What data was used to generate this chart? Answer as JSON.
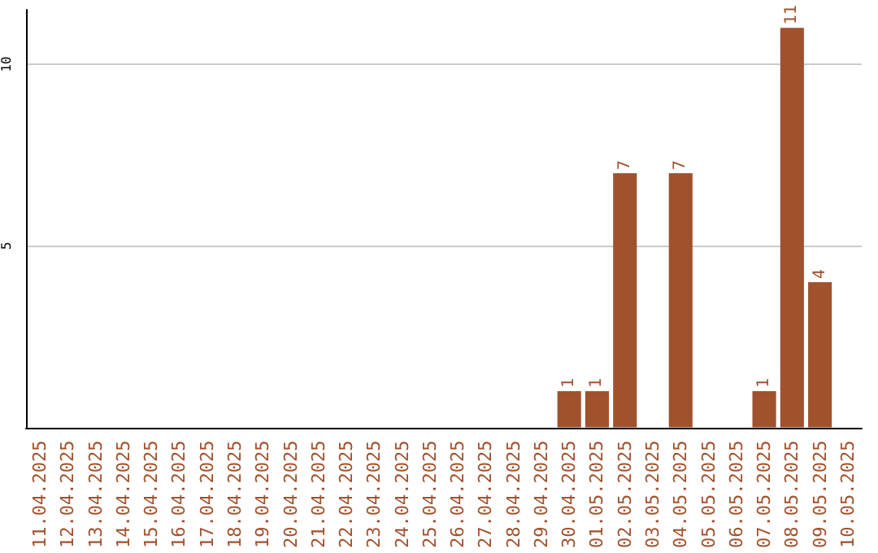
{
  "chart_data": {
    "type": "bar",
    "categories": [
      "11.04.2025",
      "12.04.2025",
      "13.04.2025",
      "14.04.2025",
      "15.04.2025",
      "16.04.2025",
      "17.04.2025",
      "18.04.2025",
      "19.04.2025",
      "20.04.2025",
      "21.04.2025",
      "22.04.2025",
      "23.04.2025",
      "24.04.2025",
      "25.04.2025",
      "26.04.2025",
      "27.04.2025",
      "28.04.2025",
      "29.04.2025",
      "30.04.2025",
      "01.05.2025",
      "02.05.2025",
      "03.05.2025",
      "04.05.2025",
      "05.05.2025",
      "06.05.2025",
      "07.05.2025",
      "08.05.2025",
      "09.05.2025",
      "10.05.2025"
    ],
    "values": [
      0,
      0,
      0,
      0,
      0,
      0,
      0,
      0,
      0,
      0,
      0,
      0,
      0,
      0,
      0,
      0,
      0,
      0,
      0,
      1,
      1,
      7,
      0,
      7,
      0,
      0,
      1,
      11,
      4,
      0
    ],
    "value_labels": [
      null,
      null,
      null,
      null,
      null,
      null,
      null,
      null,
      null,
      null,
      null,
      null,
      null,
      null,
      null,
      null,
      null,
      null,
      null,
      "1",
      "1",
      "7",
      null,
      "7",
      null,
      null,
      "1",
      "11",
      "4",
      null
    ],
    "color": "#a0522d",
    "ylim": [
      0,
      11.5
    ],
    "yticks": [
      5,
      10
    ],
    "grid": "y"
  }
}
